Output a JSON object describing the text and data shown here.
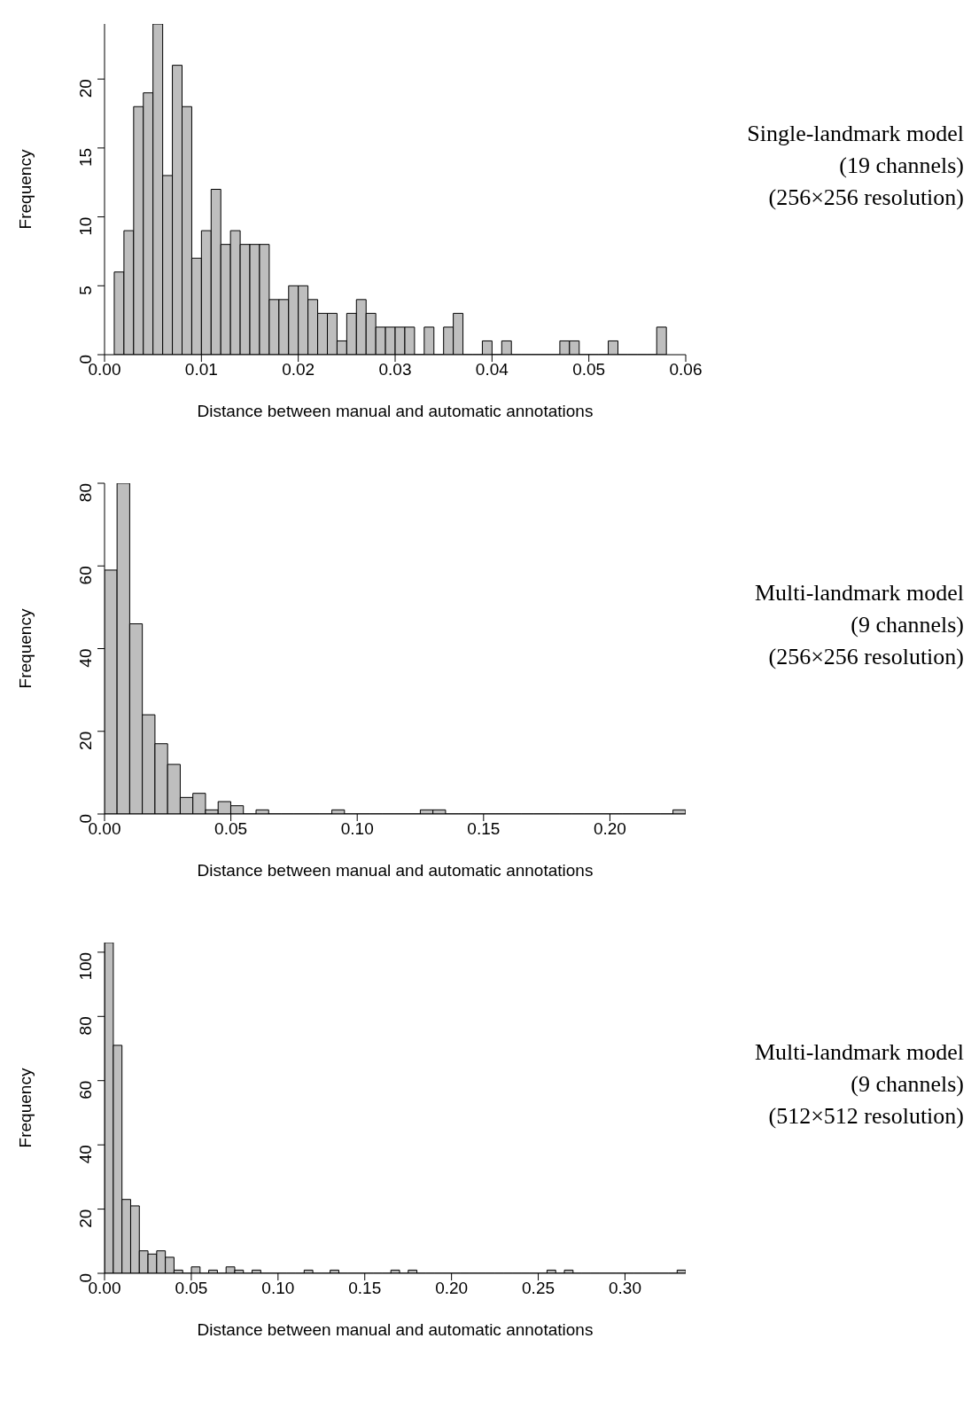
{
  "chart_data": [
    {
      "type": "histogram",
      "xlabel": "Distance between manual and automatic annotations",
      "ylabel": "Frequency",
      "annotations": [
        "Single-landmark model",
        "(19 channels)",
        "(256×256 resolution)"
      ],
      "color": "#bebebe",
      "bins": [
        0.001,
        0.002,
        0.003,
        0.004,
        0.005,
        0.006,
        0.007,
        0.008,
        0.009,
        0.01,
        0.011,
        0.012,
        0.013,
        0.014,
        0.015,
        0.016,
        0.017,
        0.018,
        0.019,
        0.02,
        0.021,
        0.022,
        0.023,
        0.024,
        0.025,
        0.026,
        0.027,
        0.028,
        0.029,
        0.03,
        0.031,
        0.032,
        0.033,
        0.034,
        0.035,
        0.036,
        0.037,
        0.038,
        0.039,
        0.04,
        0.041,
        0.042,
        0.043,
        0.044,
        0.045,
        0.046,
        0.047,
        0.048,
        0.049,
        0.05,
        0.051,
        0.052,
        0.053,
        0.054,
        0.055,
        0.056,
        0.057,
        0.058
      ],
      "values": [
        6,
        9,
        18,
        19,
        24,
        13,
        21,
        18,
        7,
        9,
        12,
        8,
        9,
        8,
        8,
        8,
        4,
        4,
        5,
        5,
        4,
        3,
        3,
        1,
        3,
        4,
        3,
        2,
        2,
        2,
        2,
        0,
        2,
        0,
        2,
        3,
        0,
        0,
        1,
        0,
        1,
        0,
        0,
        0,
        0,
        0,
        1,
        1,
        0,
        0,
        0,
        1,
        0,
        0,
        0,
        0,
        2
      ],
      "xlim": [
        0,
        0.06
      ],
      "xticks": [
        {
          "value": 0,
          "label": "0.00"
        },
        {
          "value": 0.01,
          "label": "0.01"
        },
        {
          "value": 0.02,
          "label": "0.02"
        },
        {
          "value": 0.03,
          "label": "0.03"
        },
        {
          "value": 0.04,
          "label": "0.04"
        },
        {
          "value": 0.05,
          "label": "0.05"
        },
        {
          "value": 0.06,
          "label": "0.06"
        }
      ],
      "ylim": [
        0,
        24
      ],
      "yticks": [
        0,
        5,
        10,
        15,
        20
      ]
    },
    {
      "type": "histogram",
      "xlabel": "Distance between manual and automatic annotations",
      "ylabel": "Frequency",
      "annotations": [
        "Multi-landmark model",
        "(9 channels)",
        "(256×256 resolution)"
      ],
      "color": "#bebebe",
      "bins": [
        0,
        0.005,
        0.01,
        0.015,
        0.02,
        0.025,
        0.03,
        0.035,
        0.04,
        0.045,
        0.05,
        0.055,
        0.06,
        0.065,
        0.07,
        0.075,
        0.08,
        0.085,
        0.09,
        0.095,
        0.1,
        0.105,
        0.11,
        0.115,
        0.12,
        0.125,
        0.13,
        0.135,
        0.14,
        0.145,
        0.15,
        0.155,
        0.16,
        0.165,
        0.17,
        0.175,
        0.18,
        0.185,
        0.19,
        0.195,
        0.2,
        0.205,
        0.21,
        0.215,
        0.22,
        0.225,
        0.23
      ],
      "values": [
        59,
        80,
        46,
        24,
        17,
        12,
        4,
        5,
        1,
        3,
        2,
        0,
        1,
        0,
        0,
        0,
        0,
        0,
        1,
        0,
        0,
        0,
        0,
        0,
        0,
        1,
        1,
        0,
        0,
        0,
        0,
        0,
        0,
        0,
        0,
        0,
        0,
        0,
        0,
        0,
        0,
        0,
        0,
        0,
        0,
        1
      ],
      "xlim": [
        0,
        0.23
      ],
      "xticks": [
        {
          "value": 0,
          "label": "0.00"
        },
        {
          "value": 0.05,
          "label": "0.05"
        },
        {
          "value": 0.1,
          "label": "0.10"
        },
        {
          "value": 0.15,
          "label": "0.15"
        },
        {
          "value": 0.2,
          "label": "0.20"
        }
      ],
      "ylim": [
        0,
        80
      ],
      "yticks": [
        0,
        20,
        40,
        60,
        80
      ]
    },
    {
      "type": "histogram",
      "xlabel": "Distance between manual and automatic annotations",
      "ylabel": "Frequency",
      "annotations": [
        "Multi-landmark model",
        "(9 channels)",
        "(512×512 resolution)"
      ],
      "color": "#bebebe",
      "bins": [
        0,
        0.005,
        0.01,
        0.015,
        0.02,
        0.025,
        0.03,
        0.035,
        0.04,
        0.045,
        0.05,
        0.055,
        0.06,
        0.065,
        0.07,
        0.075,
        0.08,
        0.085,
        0.09,
        0.095,
        0.1,
        0.105,
        0.11,
        0.115,
        0.12,
        0.125,
        0.13,
        0.135,
        0.14,
        0.145,
        0.15,
        0.155,
        0.16,
        0.165,
        0.17,
        0.175,
        0.18,
        0.185,
        0.19,
        0.195,
        0.2,
        0.205,
        0.21,
        0.215,
        0.22,
        0.225,
        0.23,
        0.235,
        0.24,
        0.245,
        0.25,
        0.255,
        0.26,
        0.265,
        0.27,
        0.275,
        0.28,
        0.285,
        0.29,
        0.295,
        0.3,
        0.305,
        0.31,
        0.315,
        0.32,
        0.325,
        0.33,
        0.335
      ],
      "values": [
        103,
        71,
        23,
        21,
        7,
        6,
        7,
        5,
        1,
        0,
        2,
        0,
        1,
        0,
        2,
        1,
        0,
        1,
        0,
        0,
        0,
        0,
        0,
        1,
        0,
        0,
        1,
        0,
        0,
        0,
        0,
        0,
        0,
        1,
        0,
        1,
        0,
        0,
        0,
        0,
        0,
        0,
        0,
        0,
        0,
        0,
        0,
        0,
        0,
        0,
        0,
        1,
        0,
        1,
        0,
        0,
        0,
        0,
        0,
        0,
        0,
        0,
        0,
        0,
        0,
        0,
        1
      ],
      "xlim": [
        0,
        0.335
      ],
      "xticks": [
        {
          "value": 0,
          "label": "0.00"
        },
        {
          "value": 0.05,
          "label": "0.05"
        },
        {
          "value": 0.1,
          "label": "0.10"
        },
        {
          "value": 0.15,
          "label": "0.15"
        },
        {
          "value": 0.2,
          "label": "0.20"
        },
        {
          "value": 0.25,
          "label": "0.25"
        },
        {
          "value": 0.3,
          "label": "0.30"
        }
      ],
      "ylim": [
        0,
        103
      ],
      "yticks": [
        0,
        20,
        40,
        60,
        80,
        100
      ]
    }
  ]
}
